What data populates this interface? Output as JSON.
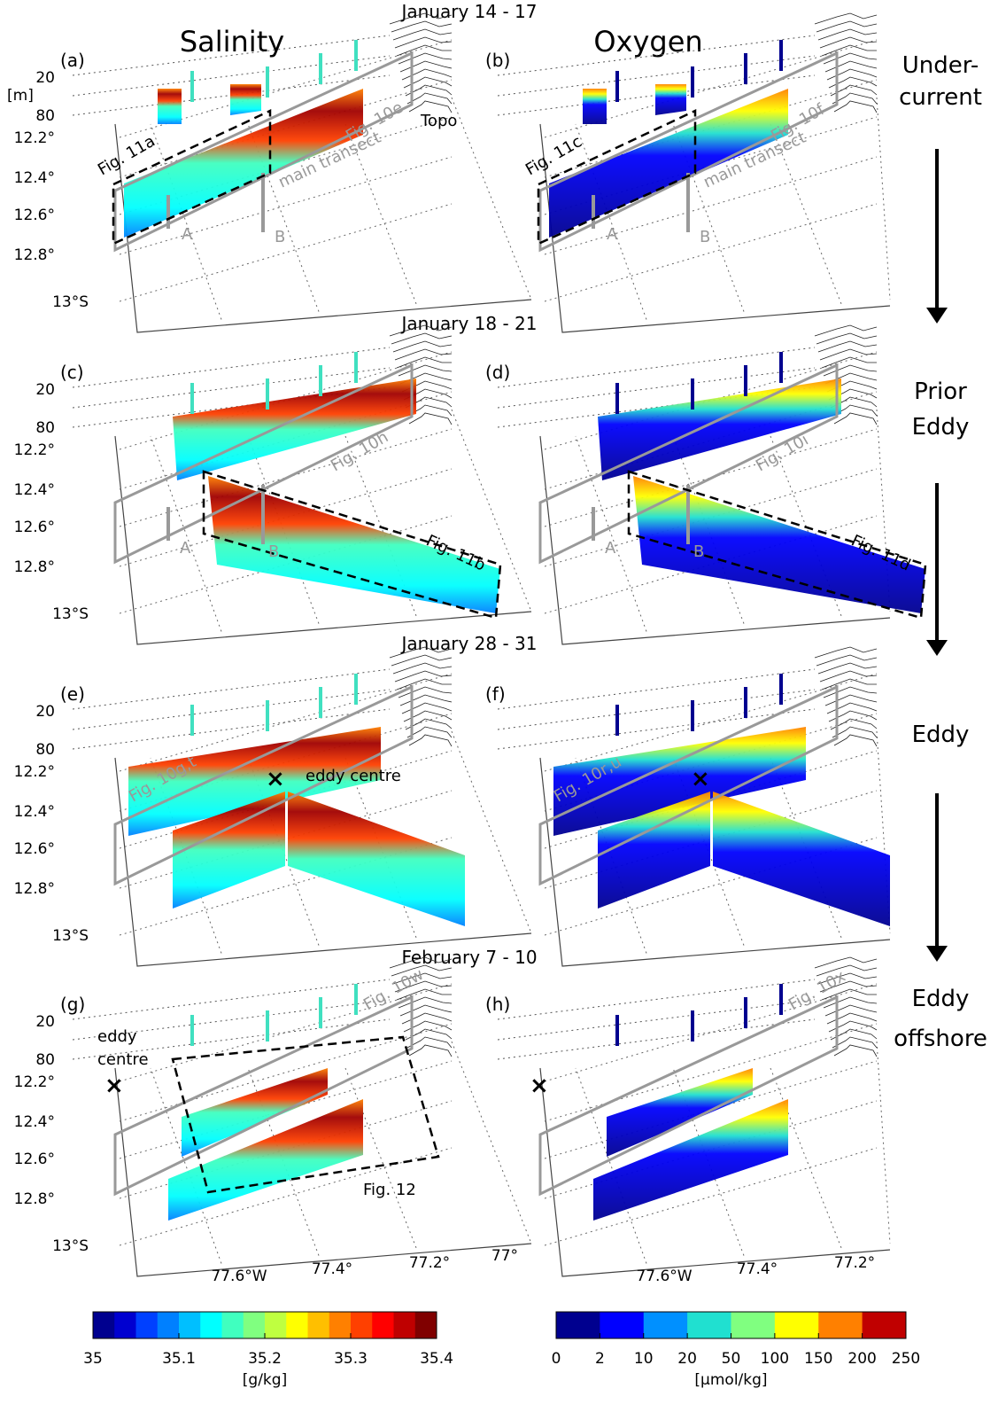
{
  "column_titles": [
    "Salinity",
    "Oxygen"
  ],
  "axes": {
    "depth_unit": "[m]",
    "depth_ticks": [
      "20",
      "80"
    ],
    "lat_ticks": [
      "12.2°",
      "12.4°",
      "12.6°",
      "12.8°",
      "13°S"
    ],
    "lon_ticks": [
      "77.6°W",
      "77.4°",
      "77.2°",
      "77°"
    ]
  },
  "rows": [
    {
      "date": "January 14 - 17",
      "label": [
        "Under-",
        "current"
      ],
      "panels": [
        {
          "letter": "(a)",
          "annotations": [
            "Fig. 11a",
            "Fig. 10e",
            "main transect",
            "Topo",
            "A",
            "B"
          ]
        },
        {
          "letter": "(b)",
          "annotations": [
            "Fig. 11c",
            "Fig. 10f",
            "main transect",
            "A",
            "B"
          ]
        }
      ]
    },
    {
      "date": "January 18 - 21",
      "label": [
        "Prior",
        "Eddy"
      ],
      "panels": [
        {
          "letter": "(c)",
          "annotations": [
            "Fig. 10h",
            "Fig. 11b",
            "A",
            "B"
          ]
        },
        {
          "letter": "(d)",
          "annotations": [
            "Fig. 10i",
            "Fig. 11d",
            "A",
            "B"
          ]
        }
      ]
    },
    {
      "date": "January 28 - 31",
      "label": [
        "Eddy"
      ],
      "panels": [
        {
          "letter": "(e)",
          "annotations": [
            "Fig. 10g,t",
            "eddy centre"
          ]
        },
        {
          "letter": "(f)",
          "annotations": [
            "Fig. 10r,u"
          ]
        }
      ]
    },
    {
      "date": "February 7 - 10",
      "label": [
        "Eddy",
        "offshore"
      ],
      "panels": [
        {
          "letter": "(g)",
          "annotations": [
            "Fig. 10w",
            "eddy",
            "centre",
            "Fig. 12"
          ]
        },
        {
          "letter": "(h)",
          "annotations": [
            "Fig. 10x"
          ]
        }
      ]
    }
  ],
  "colorbars": [
    {
      "ticks": [
        "35",
        "35.1",
        "35.2",
        "35.3",
        "35.4"
      ],
      "unit": "[g/kg]",
      "colors": [
        "#00008f",
        "#0000d0",
        "#0040ff",
        "#0080ff",
        "#00bfff",
        "#00ffff",
        "#40ffbf",
        "#80ff80",
        "#bfff40",
        "#ffff00",
        "#ffbf00",
        "#ff8000",
        "#ff4000",
        "#ff0000",
        "#bf0000",
        "#800000"
      ]
    },
    {
      "ticks": [
        "0",
        "2",
        "10",
        "20",
        "50",
        "100",
        "150",
        "200",
        "250"
      ],
      "unit": "[µmol/kg]",
      "colors": [
        "#00008f",
        "#0000ff",
        "#0090ff",
        "#20e0d0",
        "#80ff80",
        "#ffff00",
        "#ff8000",
        "#c00000"
      ]
    }
  ]
}
